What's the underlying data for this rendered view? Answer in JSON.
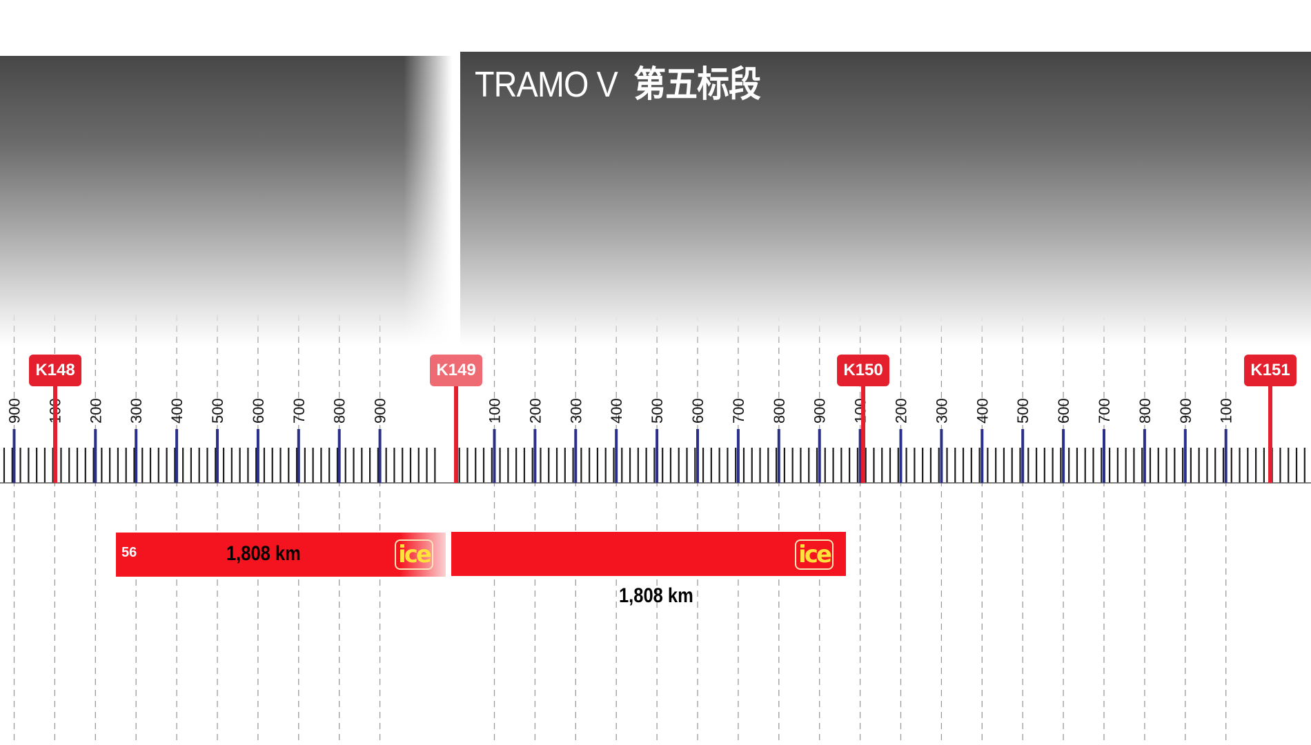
{
  "title": {
    "latin": "TRAMO V",
    "chinese": "第五标段"
  },
  "km_markers": [
    {
      "label": "K148",
      "faded": false
    },
    {
      "label": "K149",
      "faded": true
    },
    {
      "label": "K150",
      "faded": false
    },
    {
      "label": "K151",
      "faded": false
    }
  ],
  "tick_labels": [
    "900",
    "100",
    "200",
    "300",
    "400",
    "500",
    "600",
    "700",
    "800",
    "900",
    "100",
    "200",
    "300",
    "400",
    "500",
    "600",
    "700",
    "800",
    "900",
    "100",
    "200",
    "300",
    "400",
    "500",
    "600",
    "700",
    "800",
    "900",
    "100"
  ],
  "segments": [
    {
      "number": "56",
      "length": "1,808 km",
      "logo_text": "ice"
    },
    {
      "length": "1,808 km",
      "logo_text": "ice"
    }
  ],
  "colors": {
    "marker_red": "#e5202e",
    "bar_red": "#f4141f",
    "hundred_tick_blue": "#2a2f8a",
    "logo_yellow": "#ffe23a"
  }
}
